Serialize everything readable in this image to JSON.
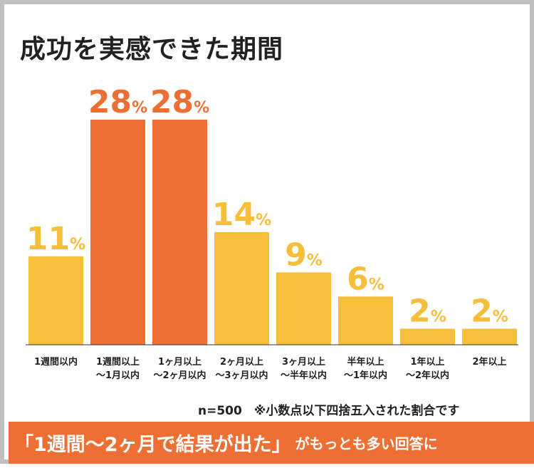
{
  "chart_data": {
    "type": "bar",
    "title": "成功を実感できた期間",
    "categories": [
      [
        "1週間以内"
      ],
      [
        "1週間以上",
        "〜1月以内"
      ],
      [
        "1ヶ月以上",
        "〜2ヶ月以内"
      ],
      [
        "2ヶ月以上",
        "〜3ヶ月以内"
      ],
      [
        "3ヶ月以上",
        "〜半年以内"
      ],
      [
        "半年以上",
        "〜1年以内"
      ],
      [
        "1年以上",
        "〜2年以内"
      ],
      [
        "2年以上"
      ]
    ],
    "values": [
      11,
      28,
      28,
      14,
      9,
      6,
      2,
      2
    ],
    "unit": "%",
    "highlight": [
      1,
      2
    ],
    "colors": {
      "default": "#f6be3b",
      "highlight": "#ee6f33",
      "axis": "#333333"
    },
    "ylim": [
      0,
      28
    ],
    "grid": false
  },
  "note": "n=500　※小数点以下四捨五入された割合です",
  "banner": {
    "main": "「1週間〜2ヶ月で結果が出た」",
    "sub": "がもっとも多い回答に"
  }
}
